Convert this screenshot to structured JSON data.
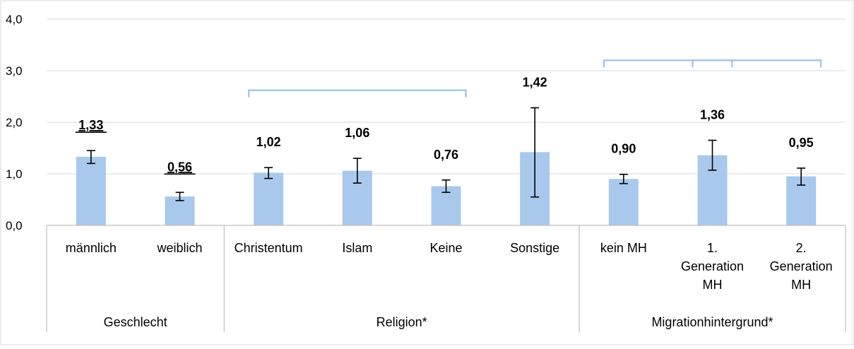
{
  "colors": {
    "bar": "#a9c9ec",
    "bracket": "#9dc3e6",
    "grid": "#d9d9d9",
    "axis": "#bfbfbf",
    "text": "#000000",
    "border": "#d9d9d9"
  },
  "chart_data": {
    "type": "bar",
    "ylim": [
      0,
      4
    ],
    "yticks": [
      "0,0",
      "1,0",
      "2,0",
      "3,0",
      "4,0"
    ],
    "grid": true,
    "legend": "none",
    "categories": [
      {
        "label": [
          "männlich"
        ],
        "value": 1.33,
        "value_label": "1,33",
        "err_low": 1.2,
        "err_high": 1.45,
        "underline": true
      },
      {
        "label": [
          "weiblich"
        ],
        "value": 0.56,
        "value_label": "0,56",
        "err_low": 0.48,
        "err_high": 0.64,
        "underline": true
      },
      {
        "label": [
          "Christentum"
        ],
        "value": 1.02,
        "value_label": "1,02",
        "err_low": 0.91,
        "err_high": 1.12,
        "underline": false
      },
      {
        "label": [
          "Islam"
        ],
        "value": 1.06,
        "value_label": "1,06",
        "err_low": 0.82,
        "err_high": 1.3,
        "underline": false
      },
      {
        "label": [
          "Keine"
        ],
        "value": 0.76,
        "value_label": "0,76",
        "err_low": 0.64,
        "err_high": 0.88,
        "underline": false
      },
      {
        "label": [
          "Sonstige"
        ],
        "value": 1.42,
        "value_label": "1,42",
        "err_low": 0.55,
        "err_high": 2.28,
        "underline": false
      },
      {
        "label": [
          "kein MH"
        ],
        "value": 0.9,
        "value_label": "0,90",
        "err_low": 0.81,
        "err_high": 0.99,
        "underline": false
      },
      {
        "label": [
          "1.",
          "Generation",
          "MH"
        ],
        "value": 1.36,
        "value_label": "1,36",
        "err_low": 1.07,
        "err_high": 1.65,
        "underline": false
      },
      {
        "label": [
          "2.",
          "Generation",
          "MH"
        ],
        "value": 0.95,
        "value_label": "0,95",
        "err_low": 0.78,
        "err_high": 1.11,
        "underline": false
      }
    ],
    "groups": [
      {
        "label": "Geschlecht",
        "start": 0,
        "end": 1
      },
      {
        "label": "Religion*",
        "start": 2,
        "end": 5
      },
      {
        "label": "Migrationhintergrund*",
        "start": 6,
        "end": 8
      }
    ],
    "brackets": [
      {
        "from": 2,
        "to": 4,
        "level": 2.62
      },
      {
        "from": 6,
        "to": 7,
        "level": 3.2
      },
      {
        "from": 7,
        "to": 8,
        "level": 3.2
      }
    ]
  }
}
